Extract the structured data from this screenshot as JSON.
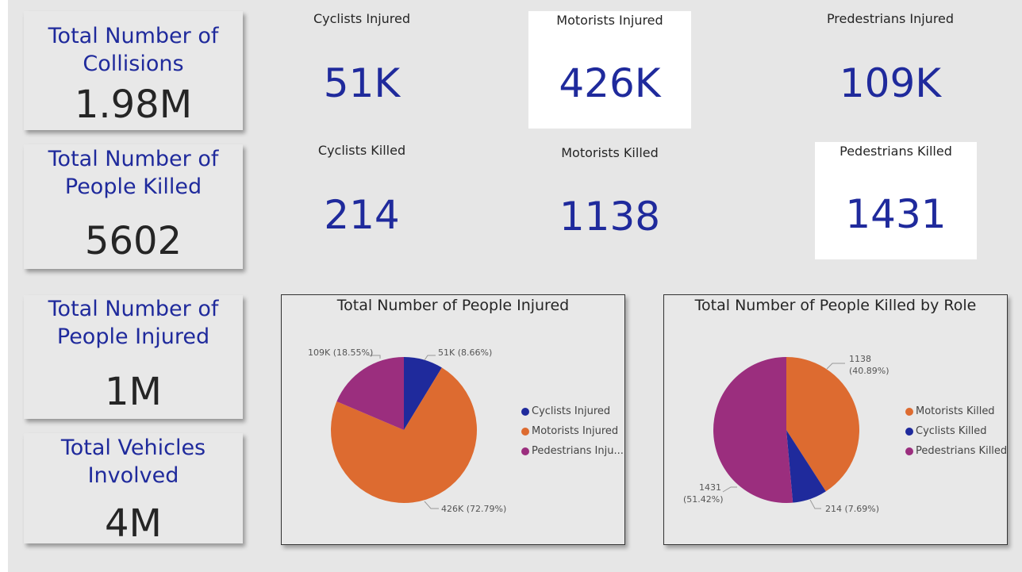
{
  "kpis": [
    {
      "title_line1": "Total Number of",
      "title_line2": "Collisions",
      "value": "1.98M"
    },
    {
      "title_line1": "Total Number of",
      "title_line2": "People Killed",
      "value": "5602"
    },
    {
      "title_line1": "Total Number of",
      "title_line2": "People Injured",
      "value": "1M"
    },
    {
      "title_line1": "Total Vehicles",
      "title_line2": "Involved",
      "value": "4M"
    }
  ],
  "stats": [
    {
      "label": "Cyclists Injured",
      "value": "51K"
    },
    {
      "label": "Motorists Injured",
      "value": "426K"
    },
    {
      "label": "Predestrians Injured",
      "value": "109K"
    },
    {
      "label": "Cyclists Killed",
      "value": "214"
    },
    {
      "label": "Motorists Killed",
      "value": "1138"
    },
    {
      "label": "Pedestrians Killed",
      "value": "1431"
    }
  ],
  "colors": {
    "blue": "#1f2a9c",
    "orange": "#dd6b30",
    "purple": "#9b2e7e"
  },
  "chart_data": [
    {
      "type": "pie",
      "title": "Total Number of People Injured",
      "slices": [
        {
          "name": "Cyclists Injured",
          "legend": "Cyclists Injured",
          "value": 51,
          "percent": 8.66,
          "label": "51K (8.66%)",
          "color": "#1f2a9c"
        },
        {
          "name": "Motorists Injured",
          "legend": "Motorists Injured",
          "value": 426,
          "percent": 72.79,
          "label": "426K (72.79%)",
          "color": "#dd6b30"
        },
        {
          "name": "Pedestrians Injured",
          "legend": "Pedestrians Inju...",
          "value": 109,
          "percent": 18.55,
          "label": "109K (18.55%)",
          "color": "#9b2e7e"
        }
      ],
      "legend_position": "right"
    },
    {
      "type": "pie",
      "title": "Total Number of People Killed by Role",
      "slices": [
        {
          "name": "Motorists Killed",
          "legend": "Motorists Killed",
          "value": 1138,
          "percent": 40.89,
          "label_line1": "1138",
          "label_line2": "(40.89%)",
          "color": "#dd6b30"
        },
        {
          "name": "Cyclists Killed",
          "legend": "Cyclists Killed",
          "value": 214,
          "percent": 7.69,
          "label_line1": "214 (7.69%)",
          "label_line2": "",
          "color": "#1f2a9c"
        },
        {
          "name": "Pedestrians Killed",
          "legend": "Pedestrians Killed",
          "value": 1431,
          "percent": 51.42,
          "label_line1": "1431",
          "label_line2": "(51.42%)",
          "color": "#9b2e7e"
        }
      ],
      "legend_position": "right"
    }
  ]
}
